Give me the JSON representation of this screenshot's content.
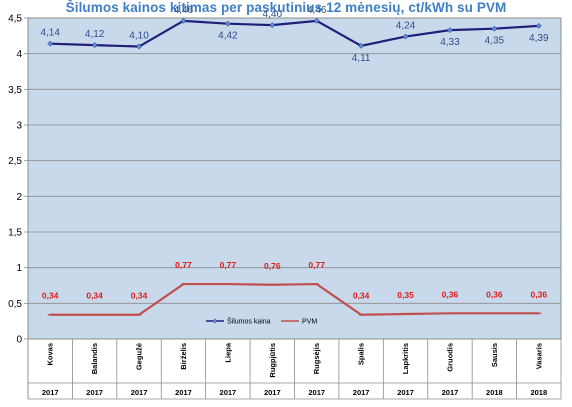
{
  "chart_data": {
    "type": "line",
    "title": "Šilumos kainos kitimas per paskutinius 12 mėnesių, ct/kWh su PVM",
    "categories": [
      "Kovas",
      "Balandis",
      "Gegužė",
      "Birželis",
      "Liepa",
      "Rugpjūtis",
      "Rugsėjis",
      "Spalis",
      "Lapkritis",
      "Gruodis",
      "Sausis",
      "Vasaris"
    ],
    "years": [
      "2017",
      "2017",
      "2017",
      "2017",
      "2017",
      "2017",
      "2017",
      "2017",
      "2017",
      "2017",
      "2018",
      "2018"
    ],
    "series": [
      {
        "name": "Šilumos kaina",
        "color": "#1f1f7a",
        "marker_color": "#5b8fd6",
        "values": [
          4.14,
          4.12,
          4.1,
          4.46,
          4.42,
          4.4,
          4.46,
          4.11,
          4.24,
          4.33,
          4.35,
          4.39
        ],
        "labels": [
          "4,14",
          "4,12",
          "4,10",
          "4,46",
          "4,42",
          "4,40",
          "4,46",
          "4,11",
          "4,24",
          "4,33",
          "4,35",
          "4,39"
        ]
      },
      {
        "name": "PVM",
        "color": "#c0504d",
        "values": [
          0.34,
          0.34,
          0.34,
          0.77,
          0.77,
          0.76,
          0.77,
          0.34,
          0.35,
          0.36,
          0.36,
          0.36
        ],
        "labels": [
          "0,34",
          "0,34",
          "0,34",
          "0,77",
          "0,77",
          "0,76",
          "0,77",
          "0,34",
          "0,35",
          "0,36",
          "0,36",
          "0,36"
        ]
      }
    ],
    "ylim": [
      0,
      4.5
    ],
    "yticks": [
      "0",
      "0,5",
      "1",
      "1,5",
      "2",
      "2,5",
      "3",
      "3,5",
      "4",
      "4,5"
    ],
    "ytick_values": [
      0,
      0.5,
      1,
      1.5,
      2,
      2.5,
      3,
      3.5,
      4,
      4.5
    ],
    "grid": true,
    "plot_background": "#c9d9ec",
    "legend_position": "bottom-center inside plot"
  }
}
